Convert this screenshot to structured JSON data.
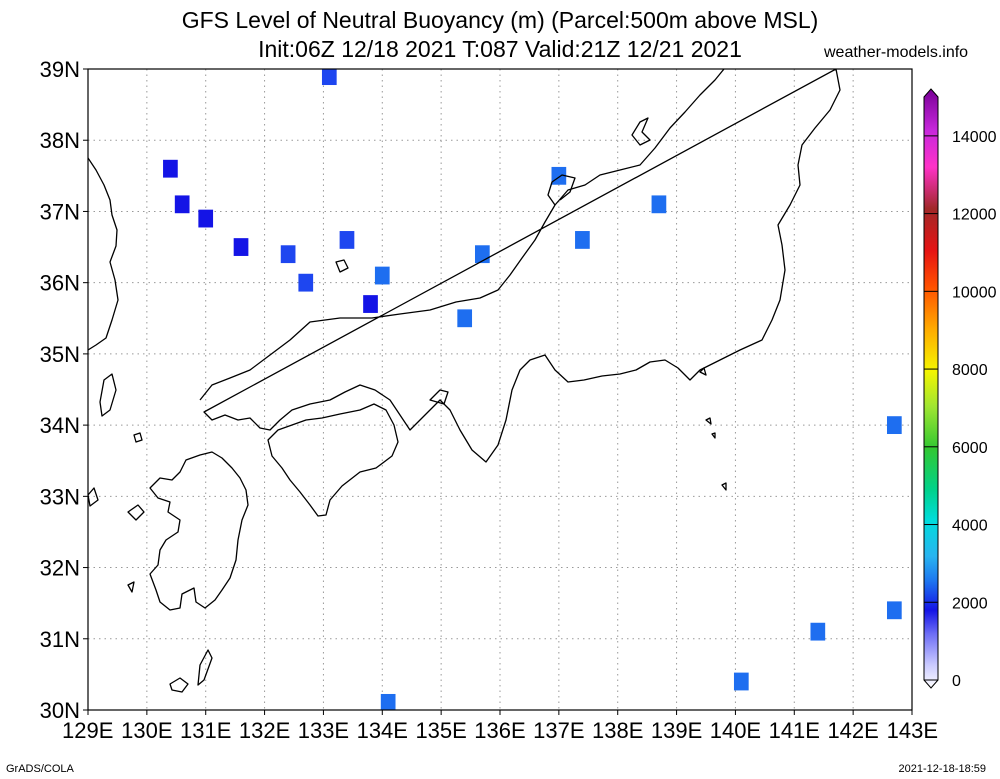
{
  "header": {
    "title_line1": "GFS Level of Neutral Buoyancy (m) (Parcel:500m above MSL)",
    "title_line2": "Init:06Z 12/18 2021 T:087 Valid:21Z 12/21 2021",
    "site": "weather-models.info"
  },
  "footer": {
    "left": "GrADS/COLA",
    "right": "2021-12-18-18:59"
  },
  "map": {
    "lat_labels": [
      "39N",
      "38N",
      "37N",
      "36N",
      "35N",
      "34N",
      "33N",
      "32N",
      "31N",
      "30N"
    ],
    "lon_labels": [
      "129E",
      "130E",
      "131E",
      "132E",
      "133E",
      "134E",
      "135E",
      "136E",
      "137E",
      "138E",
      "139E",
      "140E",
      "141E",
      "142E",
      "143E"
    ],
    "extent": {
      "lon_min": 129,
      "lon_max": 143,
      "lat_min": 30,
      "lat_max": 39
    },
    "gridline_style": "dotted grey",
    "coastline_color": "#000000"
  },
  "colorbar": {
    "labels": [
      "14000",
      "12000",
      "10000",
      "8000",
      "6000",
      "4000",
      "2000",
      "0"
    ],
    "range": [
      0,
      15000
    ]
  },
  "chart_data": {
    "type": "heatmap",
    "variable": "Level of Neutral Buoyancy (m)",
    "cells": [
      {
        "lon": 133.1,
        "lat": 38.9,
        "value": 1700
      },
      {
        "lon": 130.4,
        "lat": 37.6,
        "value": 1400
      },
      {
        "lon": 130.6,
        "lat": 37.1,
        "value": 1400
      },
      {
        "lon": 131.0,
        "lat": 36.9,
        "value": 1400
      },
      {
        "lon": 131.6,
        "lat": 36.5,
        "value": 1500
      },
      {
        "lon": 132.4,
        "lat": 36.4,
        "value": 1600
      },
      {
        "lon": 132.7,
        "lat": 36.0,
        "value": 1600
      },
      {
        "lon": 133.4,
        "lat": 36.6,
        "value": 1700
      },
      {
        "lon": 134.0,
        "lat": 36.1,
        "value": 1800
      },
      {
        "lon": 133.8,
        "lat": 35.7,
        "value": 1500
      },
      {
        "lon": 135.4,
        "lat": 35.5,
        "value": 1900
      },
      {
        "lon": 135.7,
        "lat": 36.4,
        "value": 1900
      },
      {
        "lon": 137.0,
        "lat": 37.5,
        "value": 1900
      },
      {
        "lon": 137.4,
        "lat": 36.6,
        "value": 1800
      },
      {
        "lon": 138.7,
        "lat": 37.1,
        "value": 1800
      },
      {
        "lon": 142.7,
        "lat": 34.0,
        "value": 1800
      },
      {
        "lon": 142.7,
        "lat": 31.4,
        "value": 1800
      },
      {
        "lon": 141.4,
        "lat": 31.1,
        "value": 1900
      },
      {
        "lon": 140.1,
        "lat": 30.4,
        "value": 1900
      },
      {
        "lon": 134.1,
        "lat": 30.1,
        "value": 1800
      }
    ]
  }
}
